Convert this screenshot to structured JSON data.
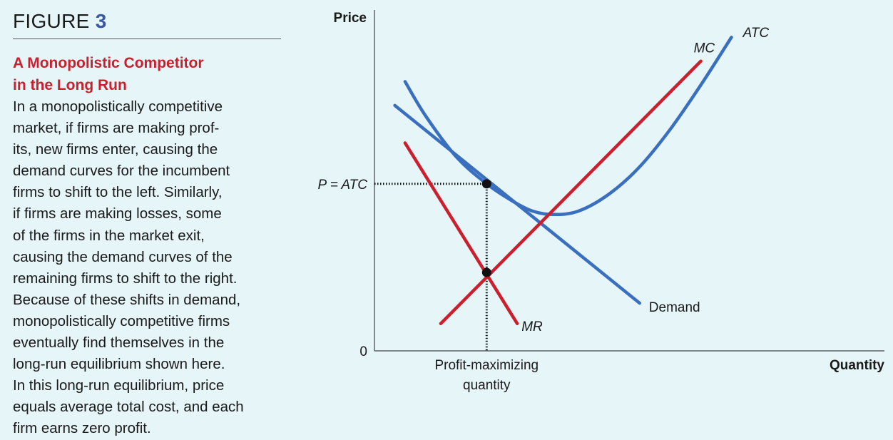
{
  "figure": {
    "label": "FIGURE",
    "number": "3",
    "title_lines": [
      "A Monopolistic Competitor",
      "in the Long Run"
    ],
    "body_lines": [
      "In a monopolistically competitive",
      "market, if firms are making prof-",
      "its, new firms enter, causing the",
      "demand curves for the incumbent",
      "firms to shift to the left. Similarly,",
      "if firms are making losses, some",
      "of the firms in the market exit,",
      "causing the demand curves of the",
      "remaining firms to shift to the right.",
      "Because of these shifts in demand,",
      "monopolistically competitive firms",
      "eventually find themselves in the",
      "long-run equilibrium shown here.",
      "In this long-run equilibrium, price",
      "equals average total cost, and each",
      "firm earns zero profit."
    ]
  },
  "chart_data": {
    "type": "line",
    "title": "",
    "xlabel": "Quantity",
    "ylabel": "Price",
    "xlim": [
      0,
      100
    ],
    "ylim": [
      0,
      100
    ],
    "grid": false,
    "colors": {
      "demand": "#3a6fc0",
      "atc": "#3a6fc0",
      "mc": "#cc1f2e",
      "mr": "#cc1f2e"
    },
    "x_tick_labels": [
      {
        "x": 22,
        "lines": [
          "Profit-maximizing",
          "quantity"
        ]
      }
    ],
    "y_tick_labels": [
      {
        "y": 0,
        "label": "0"
      },
      {
        "y": 49,
        "label": "P = ATC"
      }
    ],
    "series": [
      {
        "name": "Demand",
        "key": "demand",
        "shape": "line",
        "points": [
          [
            4,
            72
          ],
          [
            52,
            14
          ]
        ]
      },
      {
        "name": "MR",
        "key": "mr",
        "shape": "line",
        "points": [
          [
            6,
            61
          ],
          [
            28,
            8
          ]
        ]
      },
      {
        "name": "MC",
        "key": "mc",
        "shape": "line",
        "points": [
          [
            13,
            8
          ],
          [
            64,
            85
          ]
        ]
      },
      {
        "name": "ATC",
        "key": "atc",
        "shape": "curve",
        "points": [
          [
            6,
            79
          ],
          [
            10,
            69
          ],
          [
            16,
            57
          ],
          [
            22,
            49
          ],
          [
            27,
            44
          ],
          [
            31,
            41
          ],
          [
            35,
            40
          ],
          [
            40,
            41
          ],
          [
            46,
            46
          ],
          [
            52,
            54
          ],
          [
            58,
            65
          ],
          [
            64,
            78
          ],
          [
            70,
            92
          ]
        ]
      }
    ],
    "equilibrium_points": [
      {
        "name": "Long-run equilibrium",
        "x": 22,
        "y": 49
      },
      {
        "name": "MC = MR",
        "x": 22,
        "y": 23
      }
    ]
  }
}
